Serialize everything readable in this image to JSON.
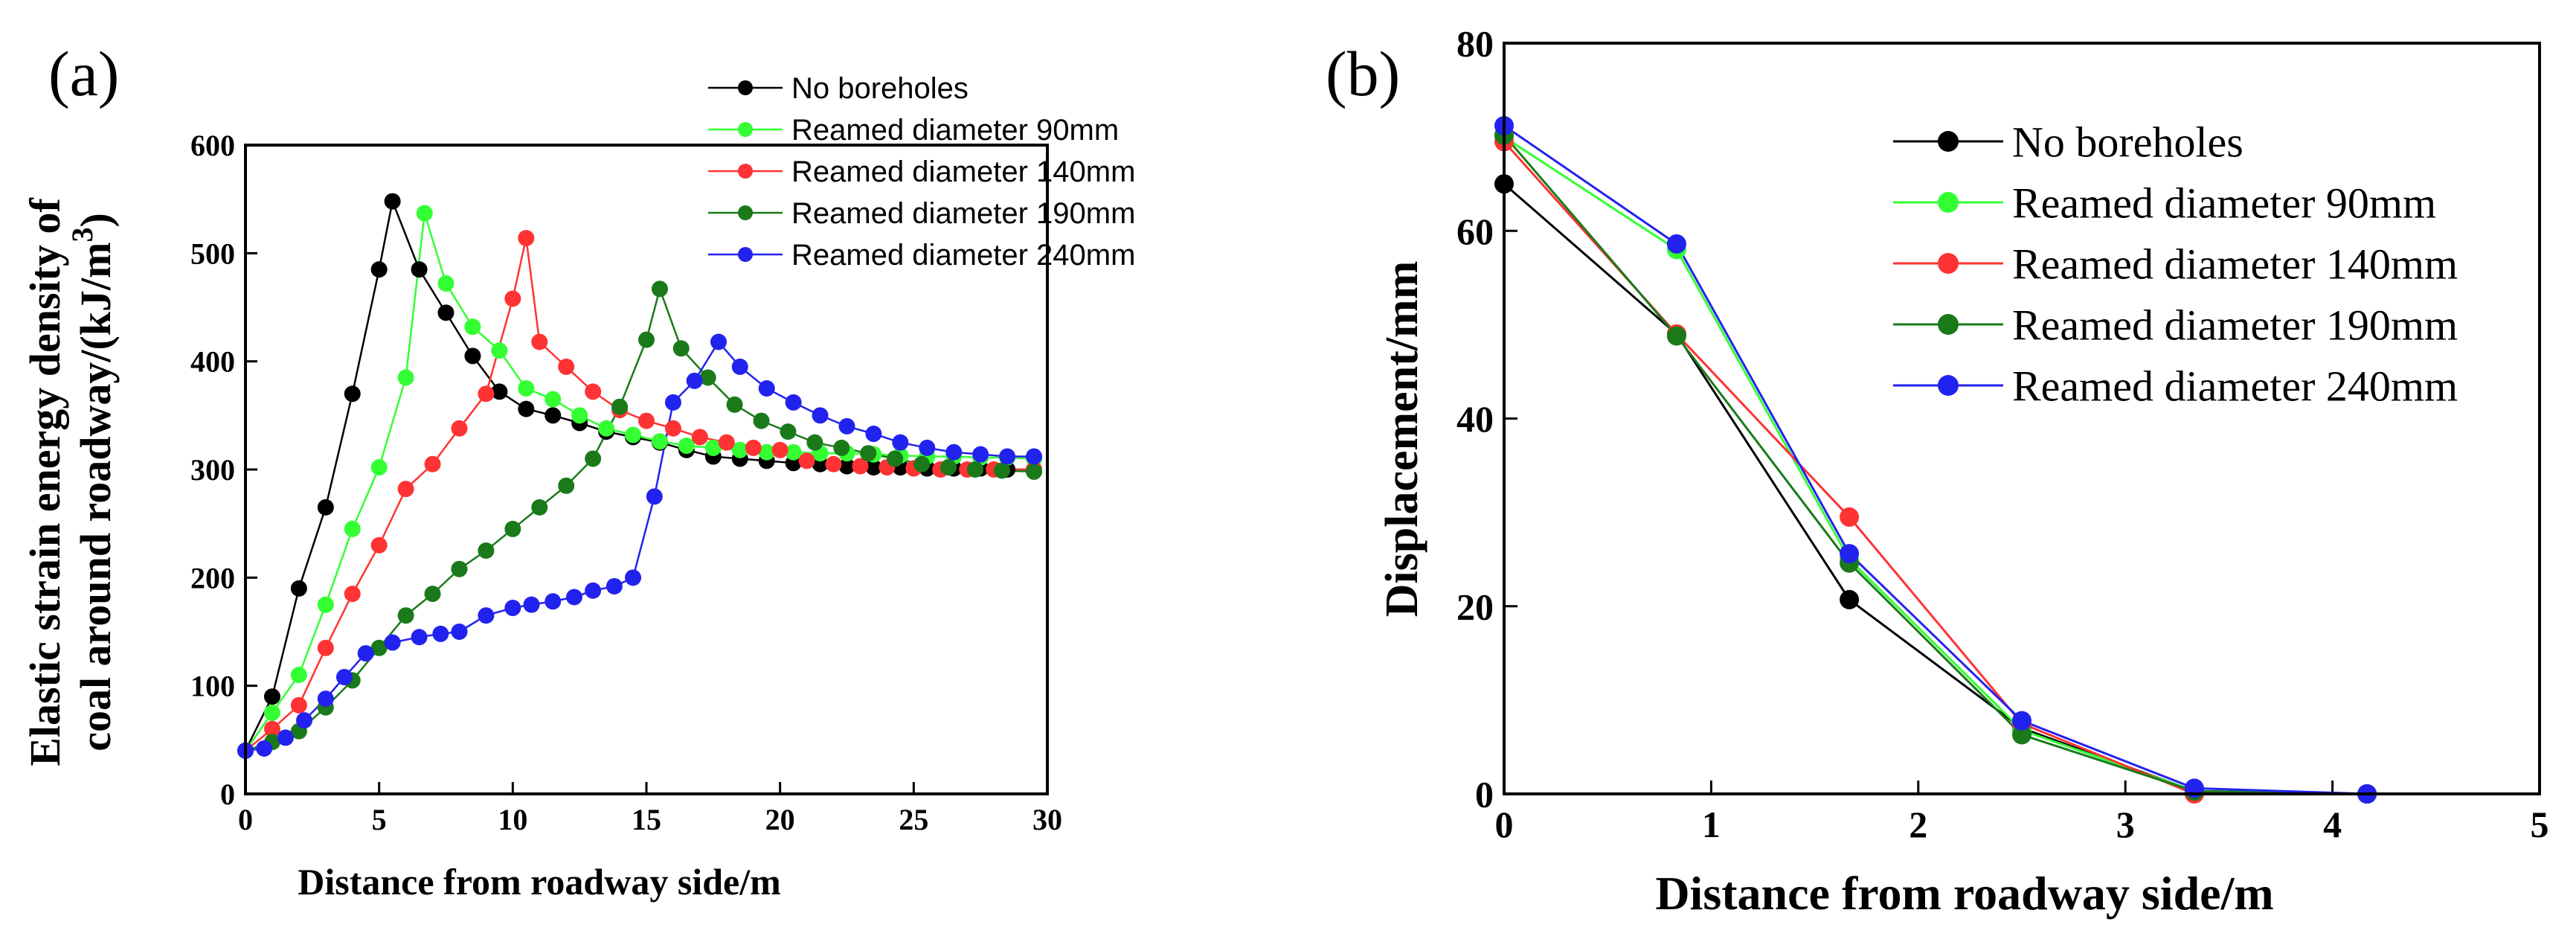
{
  "chart_data": [
    {
      "panel": "(a)",
      "type": "line",
      "xlabel": "Distance from roadway side/m",
      "ylabel_line1": "Elastic strain energy density of",
      "ylabel_line2": "coal around roadway/(kJ/m",
      "ylabel_sup": "3",
      "ylabel_close": ")",
      "xlim": [
        0,
        30
      ],
      "ylim": [
        0,
        600
      ],
      "xticks": [
        0,
        5,
        10,
        15,
        20,
        25,
        30
      ],
      "yticks": [
        0,
        100,
        200,
        300,
        400,
        500,
        600
      ],
      "legend_position": "top-right",
      "series": [
        {
          "name": "No boreholes",
          "color": "#000000",
          "x": [
            0,
            1,
            2,
            3,
            4,
            5,
            5.5,
            6.5,
            7.5,
            8.5,
            9.5,
            10.5,
            11.5,
            12.5,
            13.5,
            14.5,
            15.5,
            16.5,
            17.5,
            18.5,
            19.5,
            20.5,
            21.5,
            22.5,
            23.5,
            24.5,
            25.5,
            26.5,
            27.5,
            28.5,
            29.5
          ],
          "y": [
            40,
            90,
            190,
            265,
            370,
            485,
            548,
            485,
            445,
            405,
            372,
            356,
            350,
            343,
            335,
            330,
            325,
            318,
            312,
            310,
            308,
            306,
            305,
            303,
            302,
            302,
            301,
            301,
            301,
            300,
            300
          ]
        },
        {
          "name": "Reamed diameter 90mm",
          "color": "#33ff33",
          "x": [
            0,
            1,
            2,
            3,
            4,
            5,
            6,
            6.7,
            7.5,
            8.5,
            9.5,
            10.5,
            11.5,
            12.5,
            13.5,
            14.5,
            15.5,
            16.5,
            17.5,
            18.5,
            19.5,
            20.5,
            21.5,
            22.5,
            23.5,
            24.5,
            25.5,
            26.5,
            27.5,
            28.5,
            29.5
          ],
          "y": [
            40,
            75,
            110,
            175,
            245,
            302,
            385,
            537,
            472,
            432,
            410,
            375,
            365,
            350,
            338,
            332,
            326,
            322,
            320,
            318,
            316,
            316,
            315,
            315,
            314,
            313,
            312,
            312,
            311,
            311,
            310
          ]
        },
        {
          "name": "Reamed diameter 140mm",
          "color": "#ff3333",
          "x": [
            0,
            1,
            2,
            3,
            4,
            5,
            6,
            7,
            8,
            9,
            10,
            10.5,
            11,
            12,
            13,
            14,
            15,
            16,
            17,
            18,
            19,
            20,
            21,
            22,
            23,
            24,
            25,
            26,
            27,
            28,
            29.5
          ],
          "y": [
            40,
            60,
            82,
            135,
            185,
            230,
            282,
            305,
            338,
            370,
            458,
            514,
            418,
            395,
            372,
            355,
            345,
            338,
            330,
            325,
            320,
            318,
            308,
            305,
            303,
            302,
            301,
            300,
            300,
            300,
            300
          ]
        },
        {
          "name": "Reamed diameter 190mm",
          "color": "#1a7a1a",
          "x": [
            0,
            1,
            2,
            3,
            4,
            5,
            6,
            7,
            8,
            9,
            10,
            11,
            12,
            13,
            14,
            15,
            15.5,
            16.3,
            17.3,
            18.3,
            19.3,
            20.3,
            21.3,
            22.3,
            23.3,
            24.3,
            25.3,
            26.3,
            27.3,
            28.3,
            29.5
          ],
          "y": [
            40,
            48,
            58,
            80,
            105,
            135,
            165,
            185,
            208,
            225,
            245,
            265,
            285,
            310,
            358,
            420,
            467,
            412,
            385,
            360,
            345,
            335,
            325,
            320,
            315,
            310,
            305,
            302,
            300,
            299,
            298
          ]
        },
        {
          "name": "Reamed diameter 240mm",
          "color": "#2222ee",
          "x": [
            0,
            0.7,
            1.5,
            2.2,
            3,
            3.7,
            4.5,
            5.5,
            6.5,
            7.3,
            8,
            9,
            10,
            10.7,
            11.5,
            12.3,
            13,
            13.8,
            14.5,
            15.3,
            16,
            16.8,
            17.7,
            18.5,
            19.5,
            20.5,
            21.5,
            22.5,
            23.5,
            24.5,
            25.5,
            26.5,
            27.5,
            28.5,
            29.5
          ],
          "y": [
            40,
            42,
            52,
            68,
            88,
            108,
            130,
            140,
            145,
            148,
            150,
            165,
            172,
            175,
            178,
            182,
            188,
            192,
            200,
            275,
            362,
            382,
            418,
            395,
            375,
            362,
            350,
            340,
            333,
            325,
            320,
            316,
            314,
            312,
            312
          ]
        }
      ]
    },
    {
      "panel": "(b)",
      "type": "line",
      "xlabel": "Distance from roadway side/m",
      "ylabel": "Displacement/mm",
      "xlim": [
        0,
        5
      ],
      "ylim": [
        0,
        80
      ],
      "xticks": [
        0,
        1,
        2,
        3,
        4,
        5
      ],
      "yticks": [
        0,
        20,
        40,
        60,
        80
      ],
      "legend_position": "top-right",
      "series": [
        {
          "name": "No boreholes",
          "color": "#000000",
          "x": [
            0,
            0.833,
            1.667,
            2.5,
            3.333,
            4.167
          ],
          "y": [
            65,
            49,
            20.7,
            7,
            0.3,
            0
          ]
        },
        {
          "name": "Reamed diameter 90mm",
          "color": "#33ff33",
          "x": [
            0,
            0.833,
            1.667,
            2.5,
            3.333,
            4.167
          ],
          "y": [
            70,
            58,
            25,
            6.8,
            0.3,
            0
          ]
        },
        {
          "name": "Reamed diameter 140mm",
          "color": "#ff3333",
          "x": [
            0,
            0.833,
            1.667,
            2.5,
            3.333,
            4.167
          ],
          "y": [
            69.5,
            49,
            29.5,
            7.5,
            0,
            0
          ]
        },
        {
          "name": "Reamed diameter 190mm",
          "color": "#1a7a1a",
          "x": [
            0,
            0.833,
            1.667,
            2.5,
            3.333,
            4.167
          ],
          "y": [
            70.2,
            48.8,
            24.6,
            6.3,
            0.3,
            0
          ]
        },
        {
          "name": "Reamed diameter 240mm",
          "color": "#2222ee",
          "x": [
            0,
            0.833,
            1.667,
            2.5,
            3.333,
            4.167
          ],
          "y": [
            71.2,
            58.6,
            25.6,
            7.8,
            0.6,
            0
          ]
        }
      ]
    }
  ]
}
